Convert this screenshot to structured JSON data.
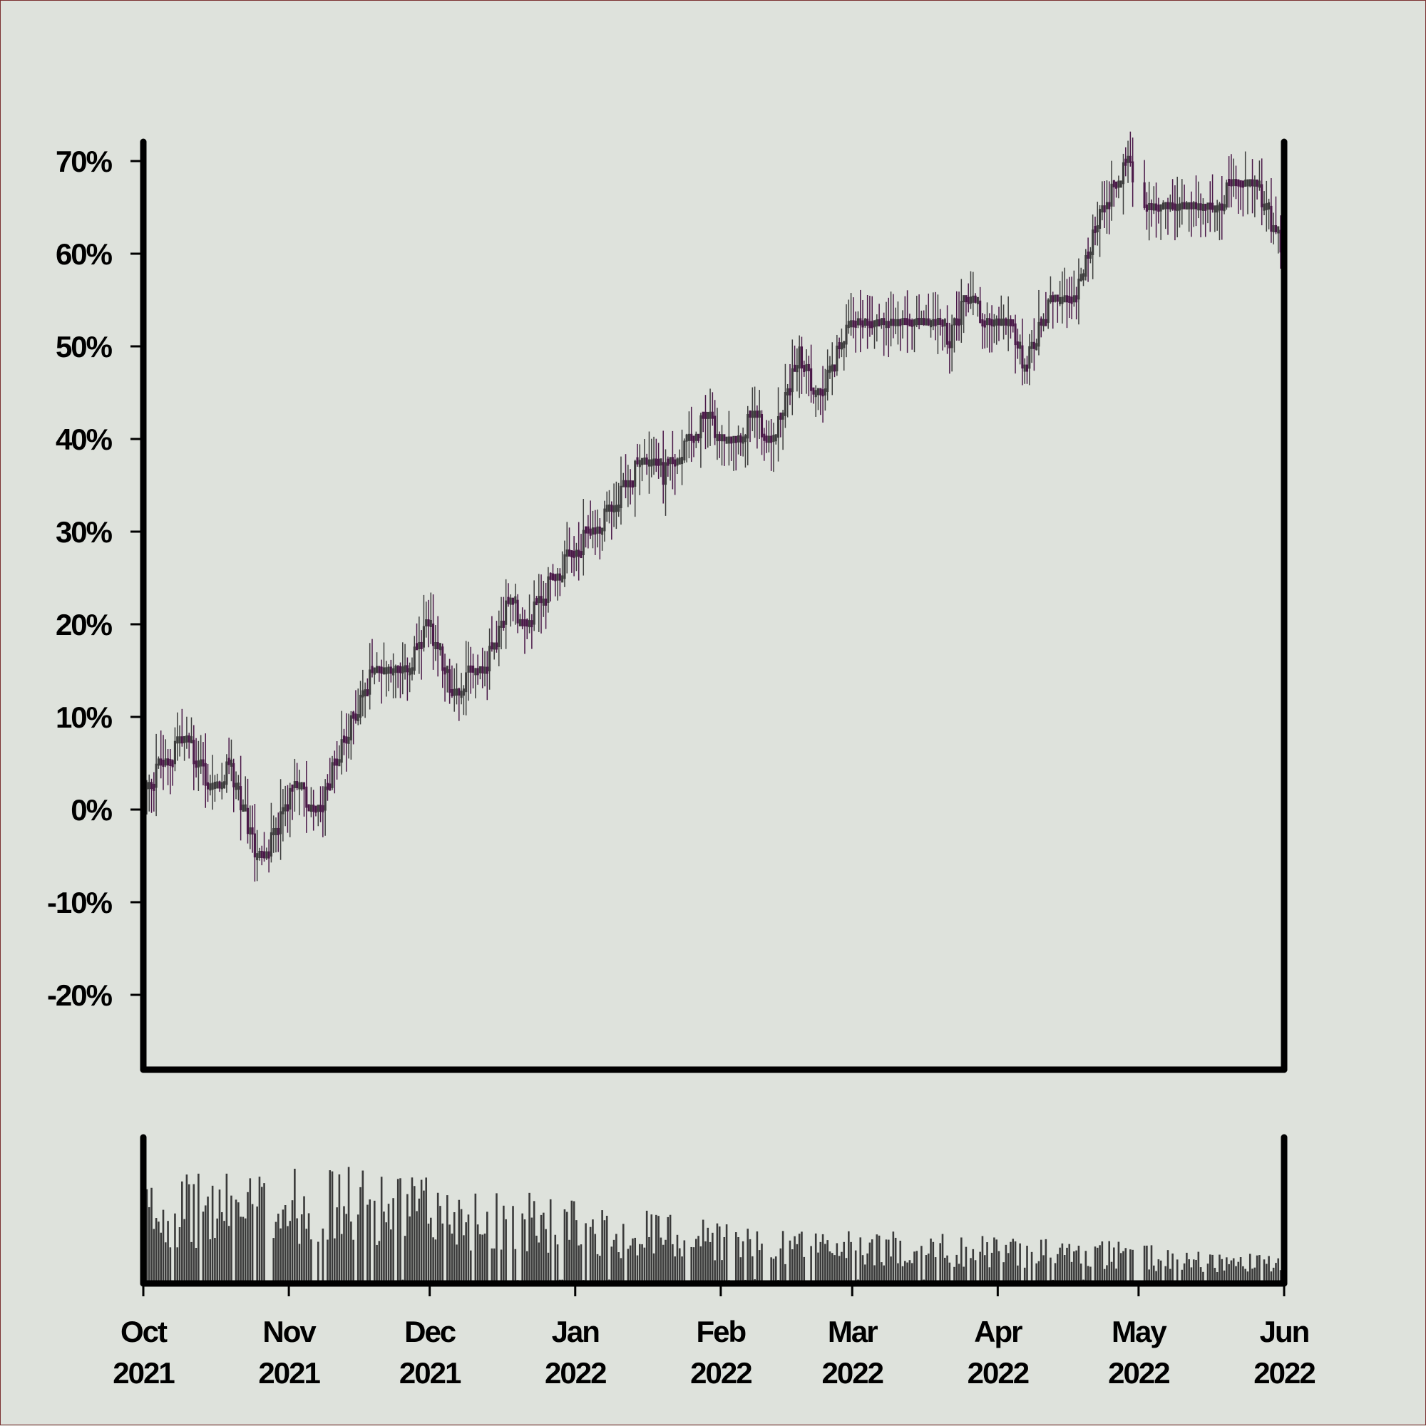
{
  "chart_data": {
    "type": "candlestick",
    "title": "",
    "xlabel": "",
    "ylabel": "",
    "ylim": [
      -0.28,
      0.72
    ],
    "y_ticks": [
      {
        "value": 0.7,
        "label": "70%"
      },
      {
        "value": 0.6,
        "label": "60%"
      },
      {
        "value": 0.5,
        "label": "50%"
      },
      {
        "value": 0.4,
        "label": "40%"
      },
      {
        "value": 0.3,
        "label": "30%"
      },
      {
        "value": 0.2,
        "label": "20%"
      },
      {
        "value": 0.1,
        "label": "10%"
      },
      {
        "value": 0.0,
        "label": "0%"
      },
      {
        "value": -0.1,
        "label": "-10%"
      },
      {
        "value": -0.2,
        "label": "-20%"
      }
    ],
    "x_range": [
      "2021-10-01",
      "2022-06-01"
    ],
    "x_ticks": [
      {
        "date": "2021-10-01",
        "month": "Oct",
        "year": "2021"
      },
      {
        "date": "2021-11-01",
        "month": "Nov",
        "year": "2021"
      },
      {
        "date": "2021-12-01",
        "month": "Dec",
        "year": "2021"
      },
      {
        "date": "2022-01-01",
        "month": "Jan",
        "year": "2022"
      },
      {
        "date": "2022-02-01",
        "month": "Feb",
        "year": "2022"
      },
      {
        "date": "2022-03-01",
        "month": "Mar",
        "year": "2022"
      },
      {
        "date": "2022-04-01",
        "month": "Apr",
        "year": "2022"
      },
      {
        "date": "2022-05-01",
        "month": "May",
        "year": "2022"
      },
      {
        "date": "2022-06-01",
        "month": "Jun",
        "year": "2022"
      }
    ],
    "grid": false,
    "legend": "none",
    "price_path": [
      {
        "date": "2021-10-01",
        "value": 0.03
      },
      {
        "date": "2021-10-05",
        "value": 0.04
      },
      {
        "date": "2021-10-10",
        "value": 0.08
      },
      {
        "date": "2021-10-15",
        "value": 0.03
      },
      {
        "date": "2021-10-20",
        "value": 0.04
      },
      {
        "date": "2021-10-24",
        "value": -0.03
      },
      {
        "date": "2021-10-27",
        "value": -0.06
      },
      {
        "date": "2021-10-31",
        "value": 0.0
      },
      {
        "date": "2021-11-03",
        "value": 0.03
      },
      {
        "date": "2021-11-07",
        "value": -0.01
      },
      {
        "date": "2021-11-12",
        "value": 0.06
      },
      {
        "date": "2021-11-20",
        "value": 0.16
      },
      {
        "date": "2021-11-27",
        "value": 0.15
      },
      {
        "date": "2021-12-01",
        "value": 0.2
      },
      {
        "date": "2021-12-06",
        "value": 0.13
      },
      {
        "date": "2021-12-13",
        "value": 0.15
      },
      {
        "date": "2021-12-18",
        "value": 0.22
      },
      {
        "date": "2021-12-22",
        "value": 0.2
      },
      {
        "date": "2021-12-28",
        "value": 0.25
      },
      {
        "date": "2022-01-05",
        "value": 0.3
      },
      {
        "date": "2022-01-10",
        "value": 0.33
      },
      {
        "date": "2022-01-16",
        "value": 0.38
      },
      {
        "date": "2022-01-20",
        "value": 0.36
      },
      {
        "date": "2022-01-29",
        "value": 0.42
      },
      {
        "date": "2022-02-03",
        "value": 0.4
      },
      {
        "date": "2022-02-09",
        "value": 0.42
      },
      {
        "date": "2022-02-12",
        "value": 0.39
      },
      {
        "date": "2022-02-18",
        "value": 0.49
      },
      {
        "date": "2022-02-22",
        "value": 0.44
      },
      {
        "date": "2022-03-01",
        "value": 0.53
      },
      {
        "date": "2022-03-16",
        "value": 0.53
      },
      {
        "date": "2022-03-22",
        "value": 0.51
      },
      {
        "date": "2022-03-26",
        "value": 0.56
      },
      {
        "date": "2022-03-29",
        "value": 0.53
      },
      {
        "date": "2022-04-04",
        "value": 0.52
      },
      {
        "date": "2022-04-07",
        "value": 0.48
      },
      {
        "date": "2022-04-13",
        "value": 0.55
      },
      {
        "date": "2022-04-18",
        "value": 0.56
      },
      {
        "date": "2022-04-23",
        "value": 0.64
      },
      {
        "date": "2022-04-26",
        "value": 0.67
      },
      {
        "date": "2022-04-29",
        "value": 0.7
      },
      {
        "date": "2022-05-02",
        "value": 0.64
      },
      {
        "date": "2022-05-04",
        "value": 0.66
      },
      {
        "date": "2022-05-08",
        "value": 0.64
      },
      {
        "date": "2022-05-13",
        "value": 0.66
      },
      {
        "date": "2022-05-17",
        "value": 0.64
      },
      {
        "date": "2022-05-21",
        "value": 0.67
      },
      {
        "date": "2022-05-26",
        "value": 0.68
      },
      {
        "date": "2022-06-01",
        "value": 0.6
      }
    ],
    "gap": [
      "2022-04-30",
      "2022-05-01"
    ],
    "volume_profile": [
      {
        "date": "2021-10-01",
        "level": 0.8
      },
      {
        "date": "2021-11-15",
        "level": 0.9
      },
      {
        "date": "2021-12-20",
        "level": 0.7
      },
      {
        "date": "2022-01-20",
        "level": 0.55
      },
      {
        "date": "2022-03-01",
        "level": 0.4
      },
      {
        "date": "2022-04-15",
        "level": 0.35
      },
      {
        "date": "2022-06-01",
        "level": 0.2
      }
    ],
    "up_color": "#3d3d3d",
    "down_color": "#4a1848",
    "volume_color": "#3a3a3a",
    "axis_color": "#000000",
    "background": "#dee2dc"
  }
}
